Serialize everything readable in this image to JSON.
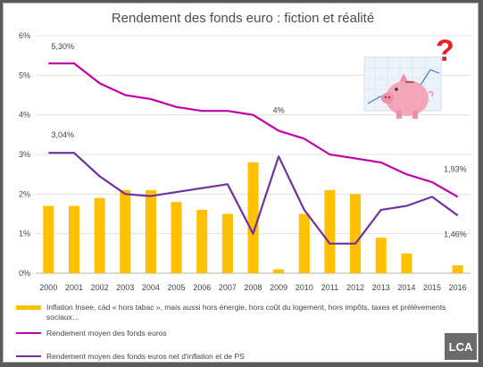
{
  "chart_data": {
    "type": "bar+line",
    "title": "Rendement des fonds euro : fiction et réalité",
    "categories": [
      "2000",
      "2001",
      "2002",
      "2003",
      "2004",
      "2005",
      "2006",
      "2007",
      "2008",
      "2009",
      "2010",
      "2011",
      "2012",
      "2013",
      "2014",
      "2015",
      "2016"
    ],
    "ylim": [
      0,
      6
    ],
    "yticks": [
      0,
      1,
      2,
      3,
      4,
      5,
      6
    ],
    "y_tick_labels": [
      "0%",
      "1%",
      "2%",
      "3%",
      "4%",
      "5%",
      "6%"
    ],
    "grid": true,
    "series": [
      {
        "name": "Inflation Insee, càd « hors tabac », mais aussi hors énergie, hors coût du logement, hors impôts, taxes et prélèvements sociaux…",
        "type": "bar",
        "color": "#FFC000",
        "values": [
          1.7,
          1.7,
          1.9,
          2.1,
          2.1,
          1.8,
          1.6,
          1.5,
          2.8,
          0.1,
          1.5,
          2.1,
          2.0,
          0.9,
          0.5,
          0.0,
          0.2
        ]
      },
      {
        "name": "Rendement moyen des fonds euros",
        "type": "line",
        "color": "#C000A8",
        "values": [
          5.3,
          5.3,
          4.8,
          4.5,
          4.4,
          4.2,
          4.1,
          4.1,
          4.0,
          3.6,
          3.4,
          3.0,
          2.9,
          2.8,
          2.5,
          2.3,
          1.93
        ]
      },
      {
        "name": "Rendement moyen des fonds euros net d'inflation et de PS",
        "type": "line",
        "color": "#7030A0",
        "values": [
          3.04,
          3.04,
          2.45,
          2.0,
          1.95,
          2.05,
          2.15,
          2.25,
          1.0,
          2.95,
          1.6,
          0.75,
          0.75,
          1.6,
          1.7,
          1.93,
          1.46
        ]
      }
    ],
    "annotations": [
      {
        "text": "5,30%",
        "series": 1,
        "index": 0
      },
      {
        "text": "3,04%",
        "series": 2,
        "index": 0
      },
      {
        "text": "4%",
        "series": 1,
        "index": 9
      },
      {
        "text": "1,93%",
        "series": 1,
        "index": 16
      },
      {
        "text": "1,46%",
        "series": 2,
        "index": 16
      }
    ],
    "legend_position": "bottom"
  },
  "logo": {
    "text": "LCA",
    "color": "#6b6b6b"
  },
  "illustration": {
    "icon": "piggy-bank-with-question-mark-icon",
    "pig_color": "#F4A6B9",
    "question_color": "#E8202A"
  }
}
